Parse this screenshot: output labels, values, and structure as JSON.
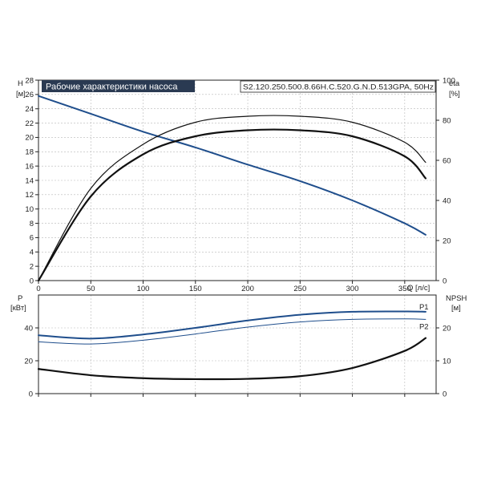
{
  "chart_data": {
    "type": "line",
    "title": "Рабочие характеристики насоса",
    "model": "S2.120.250.500.8.66H.C.520.G.N.D.513GPA, 50Hz",
    "top": {
      "ylabel_left": "H",
      "yunit_left": "[м]",
      "ylabel_right": "eta",
      "yunit_right": "[%]",
      "xlabel": "Q [л/с]",
      "xlim": [
        0,
        380
      ],
      "ylim_left": [
        0,
        28
      ],
      "ylim_right": [
        0,
        100
      ],
      "xticks": [
        0,
        50,
        100,
        150,
        200,
        250,
        300,
        350
      ],
      "yticks_left": [
        0,
        2,
        4,
        6,
        8,
        10,
        12,
        14,
        16,
        18,
        20,
        22,
        24,
        26,
        28
      ],
      "yticks_right": [
        0,
        20,
        40,
        60,
        80,
        100
      ],
      "series": [
        {
          "axis": "left",
          "color": "#1f4e8c",
          "width": 2,
          "x": [
            0,
            50,
            100,
            150,
            200,
            250,
            300,
            350,
            370
          ],
          "y": [
            25.8,
            23.3,
            20.8,
            18.6,
            16.2,
            13.9,
            11.2,
            8.0,
            6.4
          ]
        },
        {
          "axis": "right",
          "color": "#111111",
          "width": 1.2,
          "x": [
            0,
            50,
            100,
            150,
            200,
            250,
            300,
            350,
            370
          ],
          "y": [
            0,
            46,
            68,
            79,
            82,
            82,
            79,
            69,
            59
          ]
        },
        {
          "axis": "right",
          "color": "#111111",
          "width": 2.2,
          "x": [
            0,
            50,
            100,
            150,
            200,
            250,
            300,
            350,
            370
          ],
          "y": [
            0,
            42,
            63,
            72,
            75,
            75,
            72,
            62,
            51
          ]
        }
      ]
    },
    "bottom": {
      "ylabel_left": "P",
      "yunit_left": "[кВт]",
      "ylabel_right": "NPSH",
      "yunit_right": "[м]",
      "xlim": [
        0,
        380
      ],
      "ylim_left": [
        0,
        60
      ],
      "ylim_right": [
        0,
        30
      ],
      "yticks_left": [
        0,
        20,
        40
      ],
      "yticks_right": [
        0,
        10,
        20
      ],
      "series": [
        {
          "name": "P1",
          "axis": "left",
          "color": "#1f4e8c",
          "width": 2,
          "x": [
            0,
            50,
            100,
            150,
            200,
            250,
            300,
            350,
            370
          ],
          "y": [
            35.5,
            33.5,
            36.0,
            40.0,
            44.5,
            48.0,
            49.8,
            50.0,
            49.8
          ]
        },
        {
          "name": "P2",
          "axis": "left",
          "color": "#1f4e8c",
          "width": 1,
          "x": [
            0,
            50,
            100,
            150,
            200,
            250,
            300,
            350,
            370
          ],
          "y": [
            31.5,
            30.2,
            32.5,
            36.3,
            40.5,
            43.6,
            45.2,
            45.5,
            45.2
          ]
        },
        {
          "axis": "right",
          "color": "#111111",
          "width": 2.2,
          "x": [
            0,
            50,
            100,
            150,
            200,
            250,
            300,
            350,
            370
          ],
          "y": [
            7.5,
            5.6,
            4.7,
            4.4,
            4.5,
            5.3,
            7.8,
            13.0,
            16.9
          ]
        }
      ]
    }
  }
}
